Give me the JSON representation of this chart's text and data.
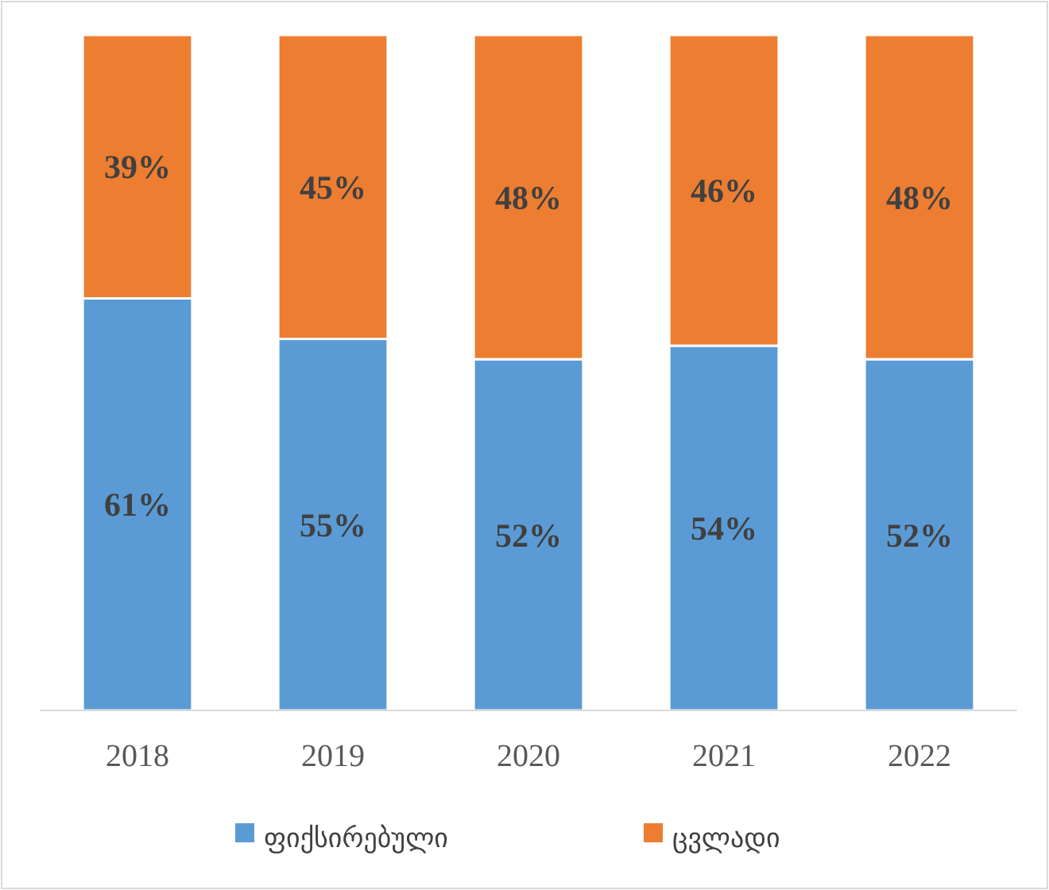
{
  "chart_data": {
    "type": "bar",
    "stacked": true,
    "categories": [
      "2018",
      "2019",
      "2020",
      "2021",
      "2022"
    ],
    "series": [
      {
        "name": "ფიქსირებული",
        "color": "#5b9bd5",
        "values": [
          61,
          55,
          52,
          54,
          52
        ],
        "value_labels": [
          "61%",
          "55%",
          "52%",
          "54%",
          "52%"
        ]
      },
      {
        "name": "ცვლადი",
        "color": "#ed7d31",
        "values": [
          39,
          45,
          48,
          46,
          48
        ],
        "value_labels": [
          "39%",
          "45%",
          "48%",
          "46%",
          "48%"
        ]
      }
    ],
    "legend": "bottom",
    "grid": false
  }
}
